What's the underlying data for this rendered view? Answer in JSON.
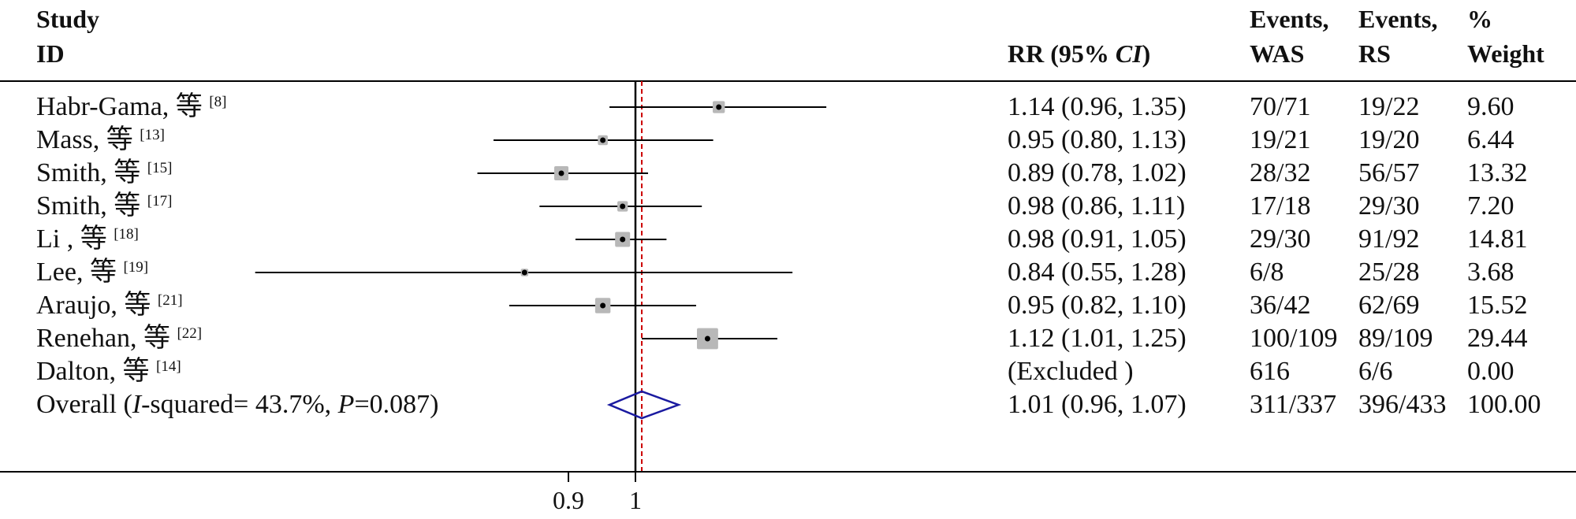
{
  "headers": {
    "study": [
      "Study",
      "ID"
    ],
    "rr": "RR (95% ",
    "rr_ci": "CI",
    "rr_close": ")",
    "events_was": [
      "Events,",
      "WAS"
    ],
    "events_rs": [
      "Events,",
      "RS"
    ],
    "weight": [
      "%",
      "Weight"
    ]
  },
  "overall_label": {
    "pre": "Overall (",
    "i": "I",
    "mid": "-squared= 43.7%, ",
    "p": "P",
    "post": "=0.087)"
  },
  "rows": [
    {
      "study": "Habr-Gama, 等",
      "ref": "[8]",
      "rr_text": "1.14 (0.96, 1.35)",
      "events_was": "70/71",
      "events_rs": "19/22",
      "weight": "9.60"
    },
    {
      "study": "Mass, 等",
      "ref": "[13]",
      "rr_text": "0.95 (0.80, 1.13)",
      "events_was": "19/21",
      "events_rs": "19/20",
      "weight": "6.44"
    },
    {
      "study": "Smith, 等",
      "ref": "[15]",
      "rr_text": "0.89 (0.78, 1.02)",
      "events_was": "28/32",
      "events_rs": "56/57",
      "weight": "13.32"
    },
    {
      "study": "Smith, 等",
      "ref": "[17]",
      "rr_text": "0.98 (0.86, 1.11)",
      "events_was": "17/18",
      "events_rs": "29/30",
      "weight": "7.20"
    },
    {
      "study": "Li , 等",
      "ref": "[18]",
      "rr_text": "0.98 (0.91, 1.05)",
      "events_was": "29/30",
      "events_rs": "91/92",
      "weight": "14.81"
    },
    {
      "study": "Lee, 等",
      "ref": "[19]",
      "rr_text": "0.84 (0.55, 1.28)",
      "events_was": "6/8",
      "events_rs": "25/28",
      "weight": "3.68"
    },
    {
      "study": "Araujo, 等",
      "ref": "[21]",
      "rr_text": "0.95 (0.82, 1.10)",
      "events_was": "36/42",
      "events_rs": "62/69",
      "weight": "15.52"
    },
    {
      "study": "Renehan, 等",
      "ref": "[22]",
      "rr_text": "1.12 (1.01, 1.25)",
      "events_was": "100/109",
      "events_rs": "89/109",
      "weight": "29.44"
    },
    {
      "study": "Dalton, 等",
      "ref": "[14]",
      "rr_text": "(Excluded )",
      "events_was": "616",
      "events_rs": "6/6",
      "weight": "0.00"
    }
  ],
  "overall_values": {
    "rr_text": "1.01 (0.96, 1.07)",
    "events_was": "311/337",
    "events_rs": "396/433",
    "weight": "100.00"
  },
  "axis_ticks": [
    "0.9",
    "1"
  ],
  "colors": {
    "line": "#000000",
    "box": "#b8b8b8",
    "diamond": "#1a1aa0",
    "null_ref": "#cc0000"
  },
  "chart_data": {
    "type": "forest",
    "measure": "RR",
    "x_scale": "log",
    "null_line": 1,
    "overall_line": 1.01,
    "x_ticks": [
      0.9,
      1
    ],
    "studies": [
      {
        "name": "Habr-Gama",
        "rr": 1.14,
        "lower": 0.96,
        "upper": 1.35,
        "weight": 9.6
      },
      {
        "name": "Mass",
        "rr": 0.95,
        "lower": 0.8,
        "upper": 1.13,
        "weight": 6.44
      },
      {
        "name": "Smith [15]",
        "rr": 0.89,
        "lower": 0.78,
        "upper": 1.02,
        "weight": 13.32
      },
      {
        "name": "Smith [17]",
        "rr": 0.98,
        "lower": 0.86,
        "upper": 1.11,
        "weight": 7.2
      },
      {
        "name": "Li",
        "rr": 0.98,
        "lower": 0.91,
        "upper": 1.05,
        "weight": 14.81
      },
      {
        "name": "Lee",
        "rr": 0.84,
        "lower": 0.55,
        "upper": 1.28,
        "weight": 3.68
      },
      {
        "name": "Araujo",
        "rr": 0.95,
        "lower": 0.82,
        "upper": 1.1,
        "weight": 15.52
      },
      {
        "name": "Renehan",
        "rr": 1.12,
        "lower": 1.01,
        "upper": 1.25,
        "weight": 29.44
      },
      {
        "name": "Dalton",
        "rr": null,
        "lower": null,
        "upper": null,
        "weight": 0.0
      }
    ],
    "overall": {
      "rr": 1.01,
      "lower": 0.96,
      "upper": 1.07,
      "weight": 100.0
    }
  }
}
